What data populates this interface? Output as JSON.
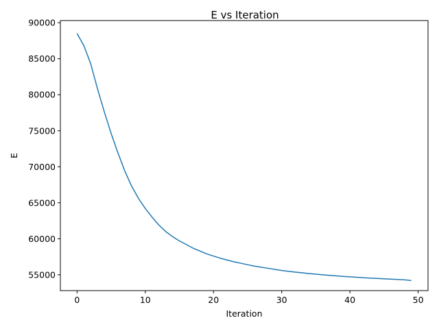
{
  "chart_data": {
    "type": "line",
    "title": "E vs Iteration",
    "xlabel": "Iteration",
    "ylabel": "E",
    "xlim": [
      -2.45,
      51.45
    ],
    "ylim": [
      52800,
      90300
    ],
    "xticks": [
      0,
      10,
      20,
      30,
      40,
      50
    ],
    "yticks": [
      55000,
      60000,
      65000,
      70000,
      75000,
      80000,
      85000,
      90000
    ],
    "grid": false,
    "series": [
      {
        "color": "#1f77b4",
        "x": [
          0,
          1,
          2,
          3,
          4,
          5,
          6,
          7,
          8,
          9,
          10,
          11,
          12,
          13,
          14,
          15,
          16,
          17,
          18,
          19,
          20,
          21,
          22,
          23,
          24,
          25,
          26,
          27,
          28,
          29,
          30,
          31,
          32,
          33,
          34,
          35,
          36,
          37,
          38,
          39,
          40,
          41,
          42,
          43,
          44,
          45,
          46,
          47,
          48,
          49
        ],
        "values": [
          88500,
          86800,
          84300,
          80800,
          77600,
          74600,
          71900,
          69400,
          67300,
          65600,
          64200,
          63000,
          61900,
          61000,
          60300,
          59700,
          59200,
          58700,
          58300,
          57900,
          57600,
          57300,
          57050,
          56800,
          56600,
          56400,
          56200,
          56050,
          55900,
          55750,
          55600,
          55480,
          55370,
          55270,
          55170,
          55080,
          55000,
          54920,
          54850,
          54780,
          54710,
          54650,
          54590,
          54540,
          54490,
          54440,
          54390,
          54350,
          54300,
          54200
        ]
      }
    ]
  }
}
